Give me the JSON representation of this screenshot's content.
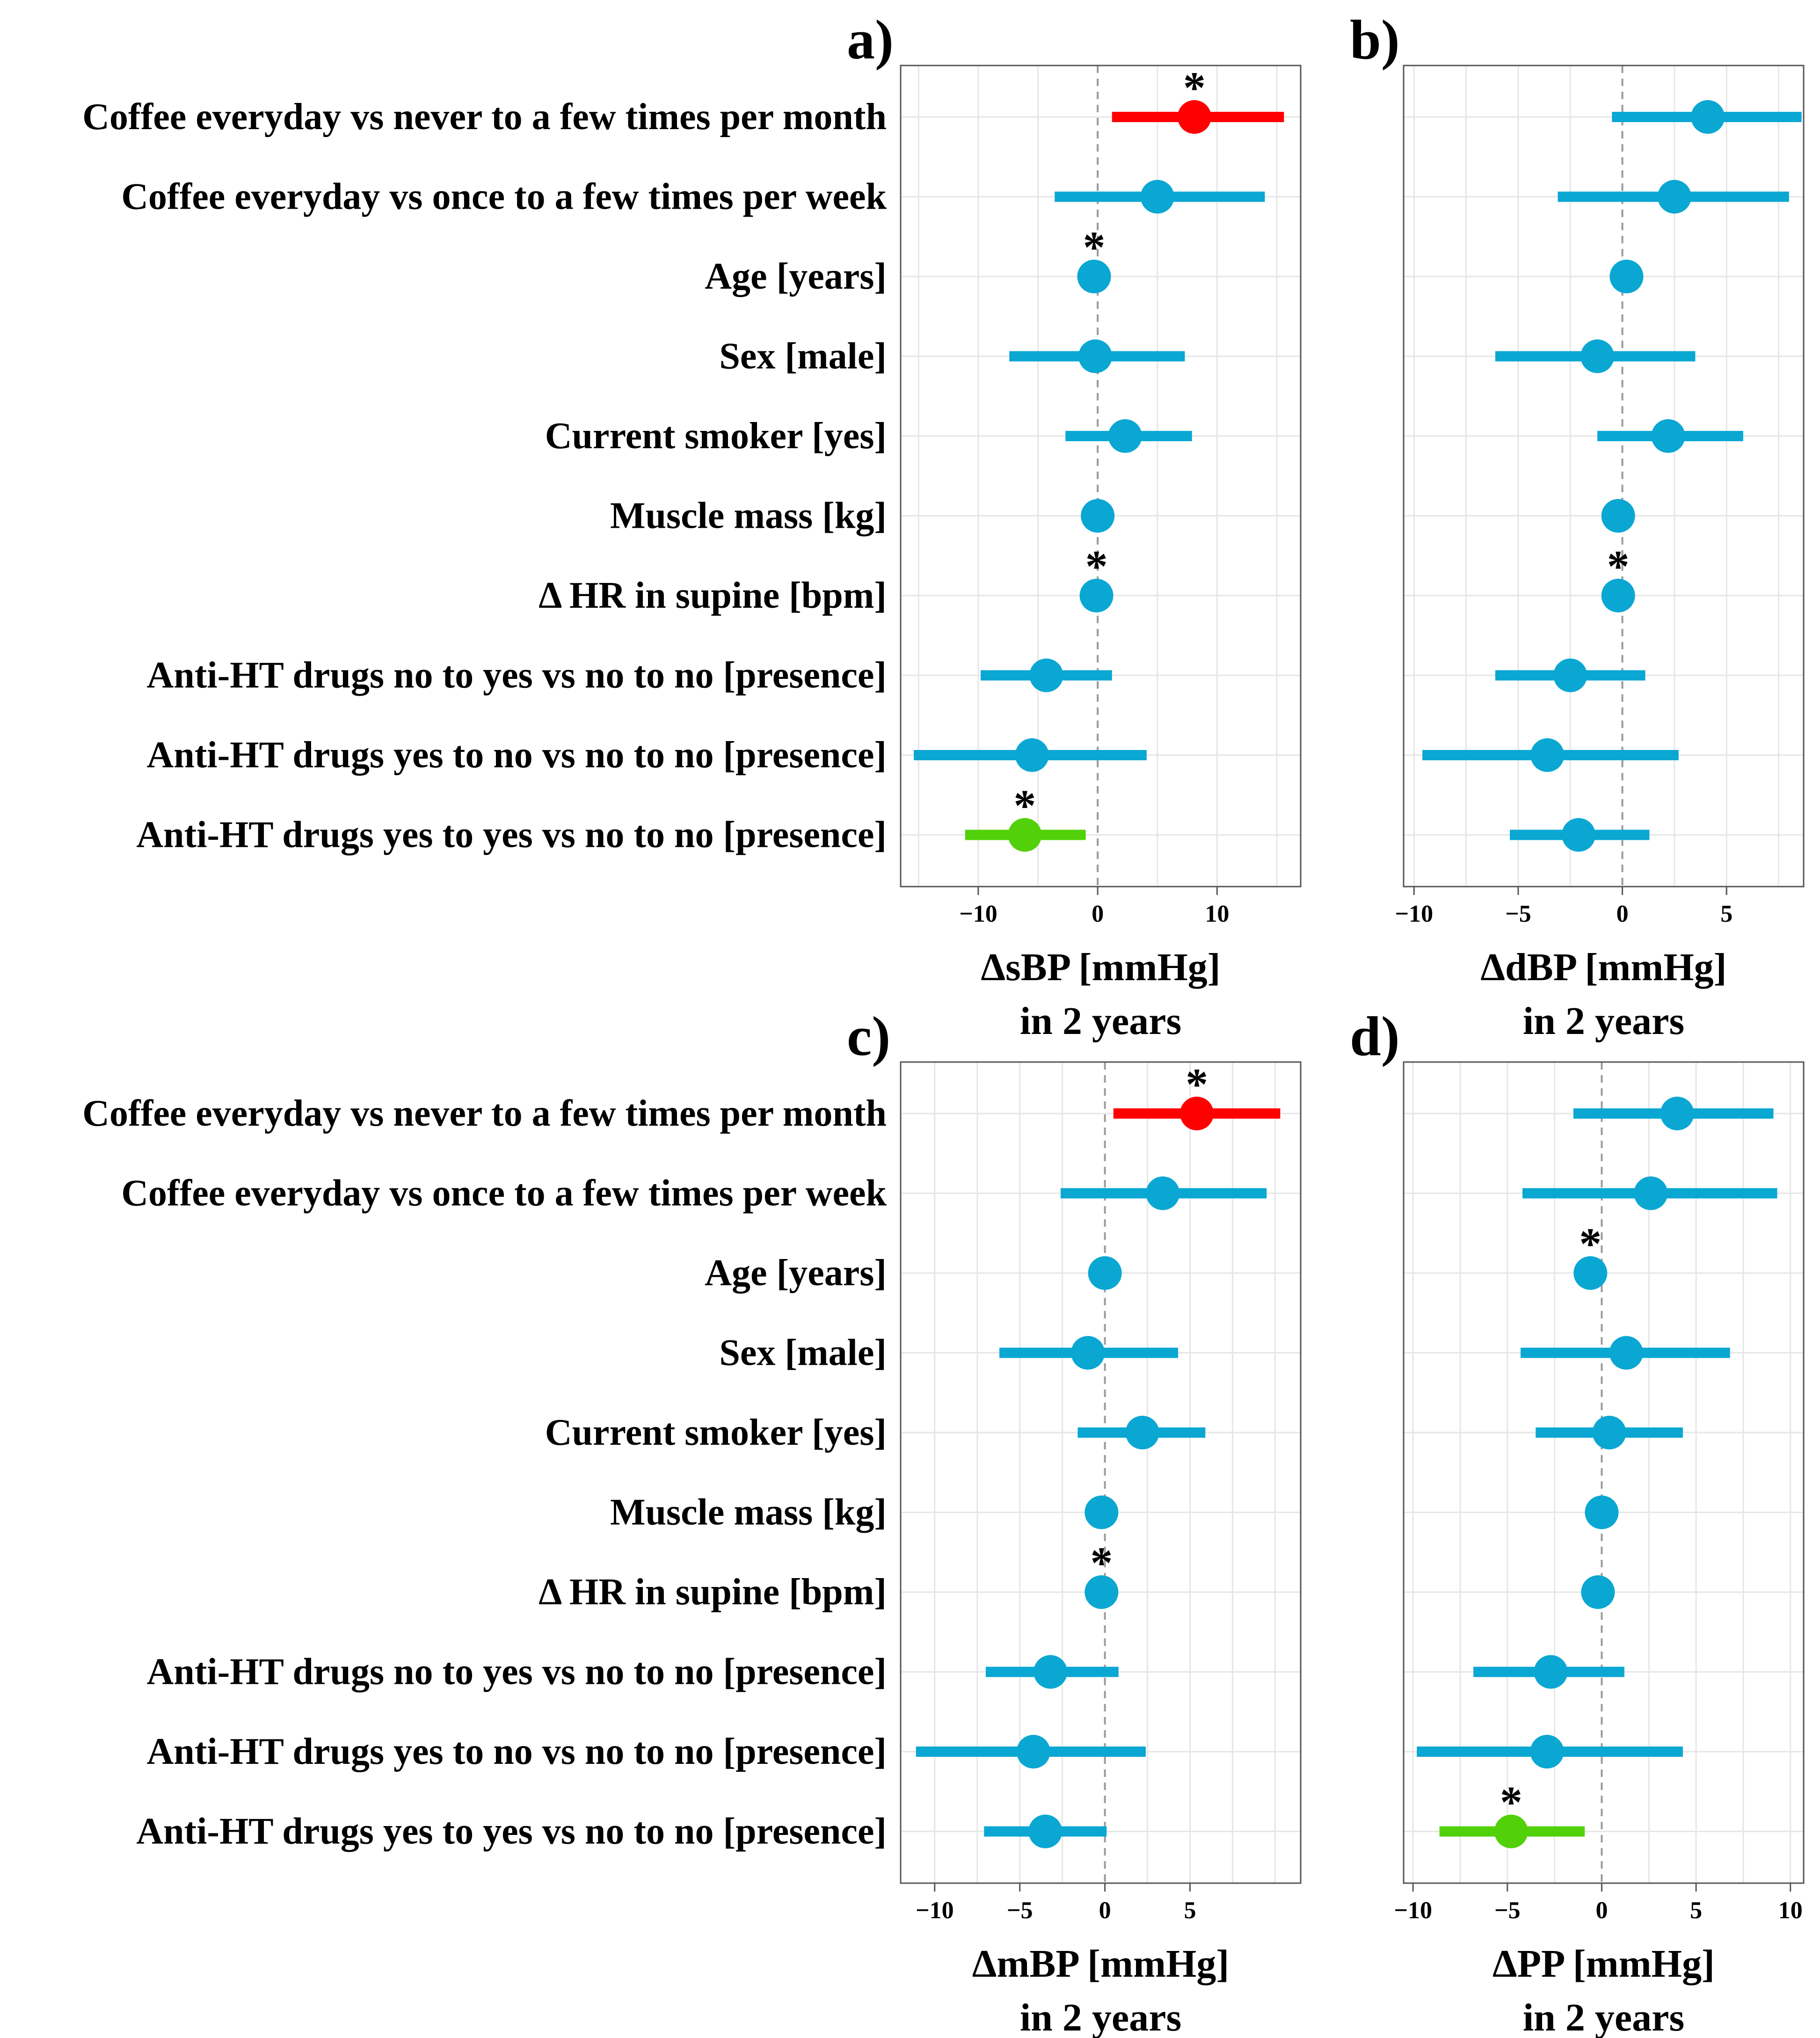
{
  "colors": {
    "default": "#0aa7d3",
    "positive_significant": "#ff0000",
    "negative_significant": "#52d10a",
    "zero_line": "#9a9a9a",
    "grid": "#e6e6e6",
    "frame": "#555555"
  },
  "chart_data": [
    {
      "type": "scatter",
      "subtype": "forest-plot",
      "panel": "a)",
      "xlabel": [
        "ΔsBP [mmHg]",
        "in 2 years"
      ],
      "xlim": [
        -16.5,
        17
      ],
      "xticks": [
        -10,
        0,
        10
      ],
      "xtick_labels": [
        "−10",
        "0",
        "10"
      ],
      "grid_x": [
        -15,
        -10,
        -5,
        0,
        5,
        10,
        15
      ],
      "categories": [
        "Coffee everyday vs never to a few times per month",
        "Coffee everyday vs once to a few times per week",
        "Age [years]",
        "Sex [male]",
        "Current smoker [yes]",
        "Muscle mass [kg]",
        "Δ HR in supine [bpm]",
        "Anti-HT drugs no to yes vs no to no [presence]",
        "Anti-HT drugs yes to no vs no to no [presence]",
        "Anti-HT drugs yes to yes vs no to no [presence]"
      ],
      "estimates": [
        8.1,
        5.0,
        -0.3,
        -0.2,
        2.3,
        0.0,
        -0.1,
        -4.3,
        -5.5,
        -6.1
      ],
      "lower": [
        1.2,
        -3.6,
        -0.6,
        -7.4,
        -2.7,
        -0.2,
        -0.4,
        -9.8,
        -15.4,
        -11.1
      ],
      "upper": [
        15.6,
        14.0,
        0.0,
        7.3,
        7.9,
        0.2,
        0.2,
        1.2,
        4.1,
        -1.0
      ],
      "significant": [
        true,
        false,
        true,
        false,
        false,
        false,
        true,
        false,
        false,
        true
      ]
    },
    {
      "type": "scatter",
      "subtype": "forest-plot",
      "panel": "b)",
      "xlabel": [
        "ΔdBP [mmHg]",
        "in 2 years"
      ],
      "xlim": [
        -10.5,
        8.7
      ],
      "xticks": [
        -10,
        -5,
        0,
        5
      ],
      "xtick_labels": [
        "−10",
        "−5",
        "0",
        "5"
      ],
      "grid_x": [
        -10,
        -7.5,
        -5,
        -2.5,
        0,
        2.5,
        5,
        7.5
      ],
      "categories": [
        "Coffee everyday vs never to a few times per month",
        "Coffee everyday vs once to a few times per week",
        "Age [years]",
        "Sex [male]",
        "Current smoker [yes]",
        "Muscle mass [kg]",
        "Δ HR in supine [bpm]",
        "Anti-HT drugs no to yes vs no to no [presence]",
        "Anti-HT drugs yes to no vs no to no [presence]",
        "Anti-HT drugs yes to yes vs no to no [presence]"
      ],
      "estimates": [
        4.1,
        2.5,
        0.2,
        -1.2,
        2.2,
        -0.2,
        -0.2,
        -2.5,
        -3.6,
        -2.1
      ],
      "lower": [
        -0.5,
        -3.1,
        0.0,
        -6.1,
        -1.2,
        -0.4,
        -0.4,
        -6.1,
        -9.6,
        -5.4
      ],
      "upper": [
        8.6,
        8.0,
        0.4,
        3.5,
        5.8,
        0.0,
        0.0,
        1.1,
        2.7,
        1.3
      ],
      "significant": [
        false,
        false,
        false,
        false,
        false,
        false,
        true,
        false,
        false,
        false
      ]
    },
    {
      "type": "scatter",
      "subtype": "forest-plot",
      "panel": "c)",
      "xlabel": [
        "ΔmBP [mmHg]",
        "in 2 years"
      ],
      "xlim": [
        -12,
        11.5
      ],
      "xticks": [
        -10,
        -5,
        0,
        5
      ],
      "xtick_labels": [
        "−10",
        "−5",
        "0",
        "5"
      ],
      "grid_x": [
        -10,
        -7.5,
        -5,
        -2.5,
        0,
        2.5,
        5,
        7.5,
        10
      ],
      "categories": [
        "Coffee everyday vs never to a few times per month",
        "Coffee everyday vs once to a few times per week",
        "Age [years]",
        "Sex [male]",
        "Current smoker [yes]",
        "Muscle mass [kg]",
        "Δ HR in supine [bpm]",
        "Anti-HT drugs no to yes vs no to no [presence]",
        "Anti-HT drugs yes to no vs no to no [presence]",
        "Anti-HT drugs yes to yes vs no to no [presence]"
      ],
      "estimates": [
        5.4,
        3.4,
        0.0,
        -1.0,
        2.2,
        -0.2,
        -0.2,
        -3.2,
        -4.2,
        -3.5
      ],
      "lower": [
        0.5,
        -2.6,
        -0.2,
        -6.2,
        -1.6,
        -0.4,
        -0.4,
        -7.0,
        -11.1,
        -7.1
      ],
      "upper": [
        10.3,
        9.5,
        0.2,
        4.3,
        5.9,
        0.0,
        0.0,
        0.8,
        2.4,
        0.1
      ],
      "significant": [
        true,
        false,
        false,
        false,
        false,
        false,
        true,
        false,
        false,
        false
      ]
    },
    {
      "type": "scatter",
      "subtype": "forest-plot",
      "panel": "d)",
      "xlabel": [
        "ΔPP [mmHg]",
        "in 2 years"
      ],
      "xlim": [
        -10.5,
        10.7
      ],
      "xticks": [
        -10,
        -5,
        0,
        5,
        10
      ],
      "xtick_labels": [
        "−10",
        "−5",
        "0",
        "5",
        "10"
      ],
      "grid_x": [
        -10,
        -7.5,
        -5,
        -2.5,
        0,
        2.5,
        5,
        7.5,
        10
      ],
      "categories": [
        "Coffee everyday vs never to a few times per month",
        "Coffee everyday vs once to a few times per week",
        "Age [years]",
        "Sex [male]",
        "Current smoker [yes]",
        "Muscle mass [kg]",
        "Δ HR in supine [bpm]",
        "Anti-HT drugs no to yes vs no to no [presence]",
        "Anti-HT drugs yes to no vs no to no [presence]",
        "Anti-HT drugs yes to yes vs no to no [presence]"
      ],
      "estimates": [
        4.0,
        2.6,
        -0.6,
        1.3,
        0.4,
        0.0,
        -0.2,
        -2.7,
        -2.9,
        -4.8
      ],
      "lower": [
        -1.5,
        -4.2,
        -0.8,
        -4.3,
        -3.5,
        -0.2,
        -0.4,
        -6.8,
        -9.8,
        -8.6
      ],
      "upper": [
        9.1,
        9.3,
        -0.4,
        6.8,
        4.3,
        0.2,
        0.0,
        1.2,
        4.3,
        -0.9
      ],
      "significant": [
        false,
        false,
        true,
        false,
        false,
        false,
        false,
        false,
        false,
        true
      ]
    }
  ]
}
